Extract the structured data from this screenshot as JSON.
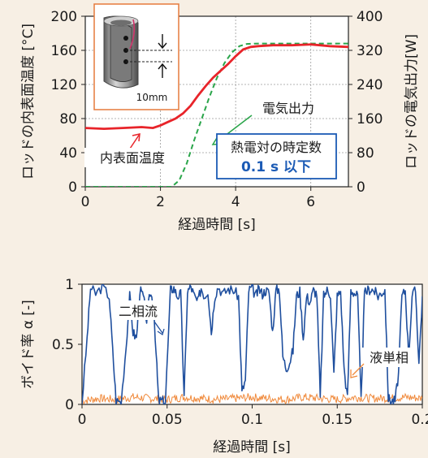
{
  "colors": {
    "background": "#f7efe4",
    "red_series": "#e8242a",
    "green_series": "#2aa54a",
    "blue_series": "#1f4f9e",
    "orange_series": "#f08a3c",
    "box_border": "#1c5bb5",
    "box_value": "#1c5bb5",
    "inset_border": "#e57a3c"
  },
  "icons": [
    "rod-cross-section-icon",
    "arrow-up-icon",
    "arrow-down-icon"
  ],
  "chart_data": [
    {
      "type": "line",
      "xlabel": "経過時間 [s]",
      "ylabel_left": "ロッドの内表面温度 [°C]",
      "ylabel_right": "ロッドの電気出力[W]",
      "xlim": [
        0,
        7
      ],
      "ylim_left": [
        0,
        200
      ],
      "ylim_right": [
        0,
        400
      ],
      "x_ticks": [
        "0",
        "2",
        "4",
        "6"
      ],
      "y_ticks_left": [
        "0",
        "40",
        "80",
        "120",
        "160",
        "200"
      ],
      "y_ticks_right": [
        "0",
        "80",
        "160",
        "240",
        "320",
        "400"
      ],
      "grid": true,
      "series": [
        {
          "name": "内表面温度",
          "axis": "left",
          "style": "solid",
          "x": [
            0,
            0.5,
            1.0,
            1.5,
            1.8,
            2.0,
            2.2,
            2.4,
            2.6,
            2.8,
            3.0,
            3.2,
            3.4,
            3.6,
            3.8,
            4.0,
            4.2,
            4.4,
            4.6,
            5.0,
            5.5,
            6.0,
            6.5,
            7.0
          ],
          "values": [
            69,
            68,
            69,
            70,
            69,
            72,
            76,
            80,
            86,
            95,
            107,
            118,
            128,
            136,
            144,
            153,
            161,
            164,
            165,
            166,
            166,
            167,
            165,
            164
          ]
        },
        {
          "name": "電気出力",
          "axis": "right",
          "style": "dashed",
          "x": [
            0,
            1.0,
            2.0,
            2.3,
            2.5,
            2.7,
            2.9,
            3.1,
            3.3,
            3.5,
            3.7,
            3.9,
            4.1,
            4.3,
            4.6,
            5.0,
            6.0,
            7.0
          ],
          "values": [
            0,
            0,
            0,
            0,
            15,
            55,
            110,
            160,
            210,
            255,
            290,
            315,
            330,
            335,
            336,
            336,
            336,
            336
          ]
        }
      ],
      "annotations": {
        "temperature_label": "内表面温度",
        "power_label": "電気出力",
        "box_title": "熱電対の時定数",
        "box_value": "0.1 s 以下",
        "inset_scale": "10mm"
      }
    },
    {
      "type": "line",
      "xlabel": "経過時間 [s]",
      "ylabel": "ボイド率 α [-]",
      "xlim": [
        0,
        0.2
      ],
      "ylim": [
        0,
        1
      ],
      "x_ticks": [
        "0",
        "0.05",
        "0.1",
        "0.15",
        "0.2"
      ],
      "y_ticks": [
        "0",
        "0.5",
        "1"
      ],
      "grid": false,
      "series": [
        {
          "name": "二相流",
          "x": [
            0,
            0.003,
            0.005,
            0.008,
            0.012,
            0.016,
            0.018,
            0.02,
            0.023,
            0.026,
            0.028,
            0.03,
            0.032,
            0.034,
            0.036,
            0.038,
            0.04,
            0.042,
            0.044,
            0.045,
            0.047,
            0.049,
            0.052,
            0.054,
            0.056,
            0.058,
            0.06,
            0.062,
            0.064,
            0.066,
            0.068,
            0.07,
            0.072,
            0.074,
            0.076,
            0.078,
            0.08,
            0.083,
            0.086,
            0.089,
            0.092,
            0.094,
            0.096,
            0.098,
            0.1,
            0.102,
            0.104,
            0.106,
            0.108,
            0.11,
            0.112,
            0.114,
            0.116,
            0.118,
            0.12,
            0.122,
            0.124,
            0.126,
            0.128,
            0.13,
            0.132,
            0.134,
            0.136,
            0.138,
            0.14,
            0.142,
            0.144,
            0.146,
            0.148,
            0.15,
            0.152,
            0.154,
            0.156,
            0.158,
            0.16,
            0.162,
            0.164,
            0.166,
            0.168,
            0.17,
            0.172,
            0.174,
            0.176,
            0.178,
            0.18,
            0.182,
            0.184,
            0.186,
            0.188,
            0.19,
            0.192,
            0.194,
            0.196,
            0.198,
            0.2
          ],
          "values": [
            0.02,
            0.55,
            0.97,
            0.92,
            0.98,
            0.9,
            0.45,
            0.03,
            0.02,
            0.5,
            0.9,
            0.6,
            0.55,
            0.95,
            0.9,
            0.7,
            0.93,
            0.85,
            0.3,
            0.03,
            0.03,
            0.02,
            0.95,
            0.97,
            0.9,
            0.92,
            0.05,
            0.94,
            0.98,
            0.9,
            0.85,
            0.97,
            0.9,
            0.95,
            0.6,
            0.9,
            0.98,
            0.92,
            0.96,
            0.95,
            0.9,
            0.1,
            0.2,
            0.95,
            0.97,
            0.9,
            0.96,
            0.92,
            0.95,
            0.93,
            0.6,
            0.95,
            0.96,
            0.4,
            0.3,
            0.35,
            0.45,
            0.9,
            0.94,
            0.55,
            0.9,
            0.85,
            0.95,
            0.92,
            0.05,
            0.9,
            0.95,
            0.92,
            0.25,
            0.9,
            0.94,
            0.3,
            0.05,
            0.95,
            0.93,
            0.9,
            0.03,
            0.92,
            0.95,
            0.96,
            0.94,
            0.9,
            0.93,
            0.95,
            0.05,
            0.03,
            0.03,
            0.25,
            0.9,
            0.95,
            0.4,
            0.9,
            0.95,
            0.35,
            0.9
          ]
        },
        {
          "name": "液単相",
          "x": [
            0,
            0.01,
            0.02,
            0.03,
            0.04,
            0.05,
            0.06,
            0.07,
            0.08,
            0.09,
            0.1,
            0.11,
            0.12,
            0.13,
            0.14,
            0.15,
            0.16,
            0.17,
            0.18,
            0.19,
            0.2
          ],
          "values": [
            0.03,
            0.05,
            0.04,
            0.06,
            0.05,
            0.04,
            0.06,
            0.05,
            0.04,
            0.05,
            0.06,
            0.05,
            0.04,
            0.06,
            0.05,
            0.04,
            0.06,
            0.05,
            0.05,
            0.06,
            0.05
          ]
        }
      ],
      "annotations": {
        "two_phase_label": "二相流",
        "liquid_label": "液単相"
      }
    }
  ]
}
